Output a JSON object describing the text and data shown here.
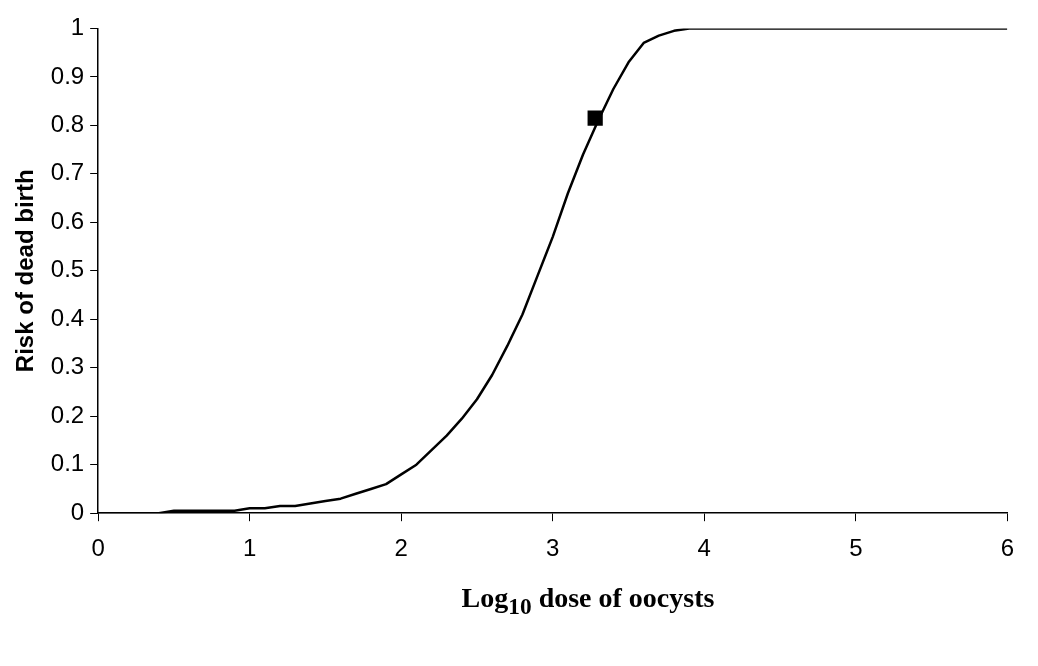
{
  "chart_data": {
    "type": "line",
    "xlabel": "Log$_{10}$ dose of oocysts",
    "ylabel": "Risk of dead birth",
    "xlim": [
      0,
      6
    ],
    "xticks": [
      0,
      1,
      2,
      3,
      4,
      5,
      6
    ],
    "ylim": [
      0,
      1
    ],
    "yticks": [
      0,
      0.1,
      0.2,
      0.3,
      0.4,
      0.5,
      0.6,
      0.7,
      0.8,
      0.9,
      1
    ],
    "grid": false,
    "legend": false,
    "series": [
      {
        "color": "#000000",
        "marker": "none",
        "x": [
          0,
          0.4,
          0.5,
          0.9,
          1.0,
          1.1,
          1.2,
          1.3,
          1.4,
          1.5,
          1.6,
          1.7,
          1.8,
          1.9,
          2.0,
          2.1,
          2.2,
          2.3,
          2.4,
          2.5,
          2.6,
          2.7,
          2.8,
          2.9,
          3.0,
          3.1,
          3.2,
          3.3,
          3.4,
          3.5,
          3.6,
          3.7,
          3.8,
          3.9,
          6
        ],
        "values": [
          0,
          0,
          0.005,
          0.005,
          0.01,
          0.01,
          0.015,
          0.015,
          0.02,
          0.025,
          0.03,
          0.04,
          0.05,
          0.06,
          0.08,
          0.1,
          0.13,
          0.16,
          0.195,
          0.235,
          0.285,
          0.345,
          0.41,
          0.49,
          0.57,
          0.66,
          0.74,
          0.81,
          0.875,
          0.93,
          0.97,
          0.985,
          0.995,
          1,
          1
        ]
      },
      {
        "type": "scatter",
        "color": "#000000",
        "marker": "square",
        "x": [
          3.28
        ],
        "values": [
          0.815
        ]
      }
    ]
  }
}
